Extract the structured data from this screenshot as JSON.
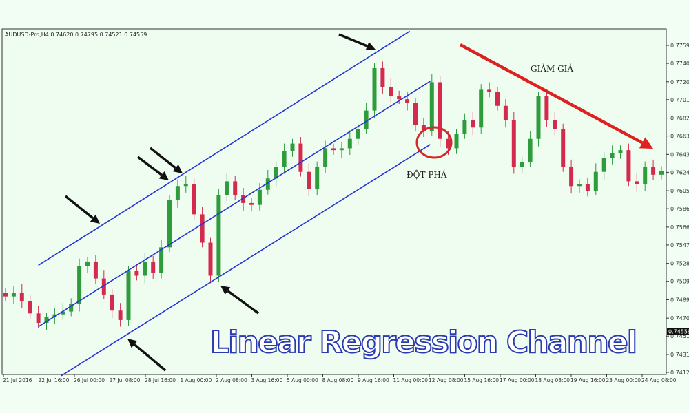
{
  "header": {
    "symbol_info": "AUDUSD-Pro,H4  0.74620 0.74795 0.74521 0.74559"
  },
  "title": "Linear Regression Channel",
  "annotations": {
    "breakout": "ĐỘT PHÁ",
    "decline": "GIẢM GIÁ"
  },
  "colors": {
    "bull": "#2f9c3c",
    "bear": "#d42a4e",
    "channel": "#2433d6",
    "arrow": "#111111",
    "trend_arrow": "#dd2020",
    "background": "#effcf0"
  },
  "chart_data": {
    "type": "candlestick",
    "y_ticks": [
      "0.77590",
      "0.77400",
      "0.77205",
      "0.77015",
      "0.76820",
      "0.76630",
      "0.76435",
      "0.76245",
      "0.76050",
      "0.75860",
      "0.75665",
      "0.75475",
      "0.75280",
      "0.75090",
      "0.74895",
      "0.74700",
      "0.74510",
      "0.74315",
      "0.74125"
    ],
    "ylim": [
      0.74125,
      0.7759
    ],
    "current_price": "0.74559",
    "x_ticks": [
      "21 Jul 2016",
      "22 Jul 16:00",
      "26 Jul 00:00",
      "27 Jul 08:00",
      "28 Jul 16:00",
      "1 Aug 00:00",
      "2 Aug 08:00",
      "3 Aug 16:00",
      "5 Aug 00:00",
      "8 Aug 08:00",
      "9 Aug 16:00",
      "11 Aug 00:00",
      "12 Aug 08:00",
      "15 Aug 16:00",
      "17 Aug 00:00",
      "18 Aug 08:00",
      "19 Aug 16:00",
      "23 Aug 00:00",
      "24 Aug 08:00"
    ],
    "closes": [
      0.7493,
      0.7497,
      0.7488,
      0.7475,
      0.7465,
      0.7471,
      0.7474,
      0.7477,
      0.7485,
      0.7525,
      0.753,
      0.7512,
      0.7495,
      0.7478,
      0.7468,
      0.752,
      0.7515,
      0.753,
      0.7518,
      0.7545,
      0.7595,
      0.761,
      0.7612,
      0.758,
      0.755,
      0.7515,
      0.76,
      0.7615,
      0.76,
      0.7592,
      0.759,
      0.7606,
      0.7618,
      0.763,
      0.7647,
      0.7655,
      0.7625,
      0.7607,
      0.763,
      0.765,
      0.7648,
      0.765,
      0.766,
      0.767,
      0.769,
      0.7735,
      0.7715,
      0.7705,
      0.7702,
      0.7698,
      0.7675,
      0.7668,
      0.772,
      0.766,
      0.765,
      0.7665,
      0.768,
      0.7672,
      0.7712,
      0.771,
      0.7695,
      0.768,
      0.763,
      0.7635,
      0.766,
      0.7705,
      0.768,
      0.767,
      0.763,
      0.761,
      0.7612,
      0.7605,
      0.7625,
      0.764,
      0.7645,
      0.7648,
      0.7615,
      0.7612,
      0.763,
      0.7622,
      0.7626
    ],
    "channel": {
      "upper": [
        [
          4,
          0.7526
        ],
        [
          49.3,
          0.7774
        ]
      ],
      "middle": [
        [
          4,
          0.7461
        ],
        [
          51.8,
          0.7721
        ]
      ],
      "lower": [
        [
          6.8,
          0.7409
        ],
        [
          51.8,
          0.7654
        ]
      ]
    }
  }
}
